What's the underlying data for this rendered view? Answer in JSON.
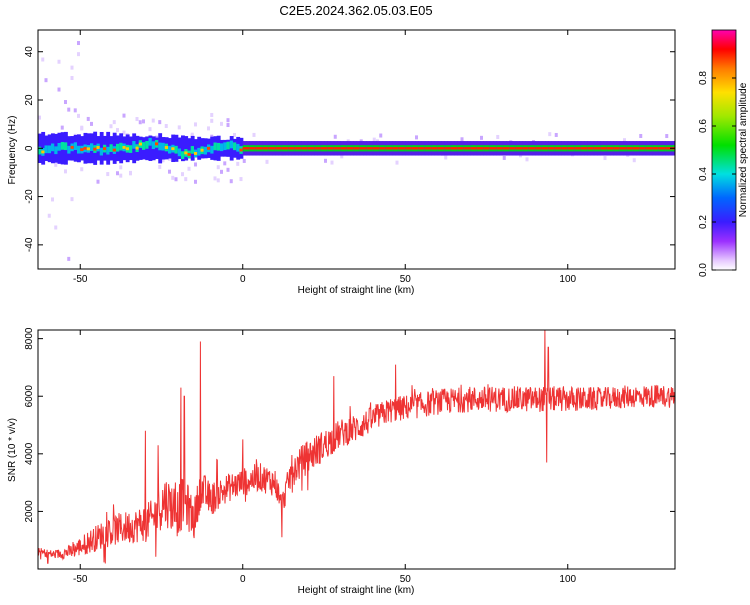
{
  "title": "C2E5.2024.362.05.03.E05",
  "chart_data": [
    {
      "type": "heatmap",
      "xlabel": "Height of straight line (km)",
      "ylabel": "Frequency (Hz)",
      "xlim": [
        -63,
        133
      ],
      "ylim": [
        -50,
        49
      ],
      "xticks": [
        -50,
        0,
        50,
        100
      ],
      "yticks": [
        -40,
        -20,
        0,
        20,
        40
      ],
      "colorbar": {
        "label": "Normalized spectral amplitude",
        "range": [
          0.0,
          1.0
        ],
        "ticks": [
          0.0,
          0.2,
          0.4,
          0.6,
          0.8
        ],
        "tick_labels": [
          "0.0",
          "0.2",
          "0.4",
          "0.6",
          "0.8"
        ]
      },
      "band_center_hz": 0,
      "band_halfwidth_hz": [
        {
          "x": -63,
          "hw": 5
        },
        {
          "x": -40,
          "hw": 5
        },
        {
          "x": -20,
          "hw": 4
        },
        {
          "x": 0,
          "hw": 3
        },
        {
          "x": 133,
          "hw": 3
        }
      ],
      "peak_frequency_hz": [
        {
          "x": -63,
          "f": -1.5
        },
        {
          "x": -55,
          "f": 0.5
        },
        {
          "x": -45,
          "f": -0.5
        },
        {
          "x": -35,
          "f": 0.5
        },
        {
          "x": -28,
          "f": 2
        },
        {
          "x": -20,
          "f": -2
        },
        {
          "x": -12,
          "f": -1
        },
        {
          "x": -5,
          "f": 1
        },
        {
          "x": 0,
          "f": 0
        },
        {
          "x": 133,
          "f": 0
        }
      ]
    },
    {
      "type": "line",
      "xlabel": "Height of straight line (km)",
      "ylabel": "SNR (10 * v/v)",
      "xlim": [
        -63,
        133
      ],
      "ylim": [
        0,
        8300
      ],
      "xticks": [
        -50,
        0,
        50,
        100
      ],
      "yticks": [
        2000,
        4000,
        6000,
        8000
      ],
      "series": [
        {
          "color": "#ee3333",
          "x": [
            -63,
            -58,
            -53,
            -48,
            -43,
            -38,
            -33,
            -28,
            -24,
            -20,
            -18,
            -15,
            -13,
            -10,
            -5,
            0,
            5,
            10,
            12,
            15,
            20,
            25,
            30,
            35,
            40,
            45,
            50,
            55,
            60,
            70,
            80,
            90,
            94,
            100,
            110,
            120,
            133
          ],
          "values": [
            600,
            500,
            600,
            900,
            1200,
            1400,
            1500,
            1700,
            2400,
            2000,
            2400,
            1700,
            2800,
            2400,
            2800,
            3000,
            3200,
            3000,
            2200,
            3400,
            3900,
            4300,
            4700,
            4900,
            5200,
            5500,
            5600,
            5700,
            5800,
            5900,
            5900,
            5900,
            5900,
            5900,
            5900,
            6000,
            6000
          ],
          "noise": [
            150,
            150,
            250,
            400,
            500,
            550,
            600,
            700,
            900,
            900,
            900,
            700,
            700,
            600,
            500,
            500,
            500,
            500,
            400,
            550,
            600,
            550,
            500,
            500,
            450,
            450,
            450,
            450,
            450,
            450,
            450,
            450,
            450,
            450,
            400,
            400,
            400
          ],
          "spikes": [
            {
              "x": -30,
              "v": 4800
            },
            {
              "x": -26,
              "v": 4300
            },
            {
              "x": -19,
              "v": 6300
            },
            {
              "x": -18,
              "v": 6000
            },
            {
              "x": -13,
              "v": 7900
            },
            {
              "x": -8,
              "v": 3800
            },
            {
              "x": 0,
              "v": 4500
            },
            {
              "x": 28,
              "v": 6700
            },
            {
              "x": 47,
              "v": 7100
            },
            {
              "x": 93,
              "v": 8300
            },
            {
              "x": 94,
              "v": 7700
            },
            {
              "x": 93.5,
              "v": 3700
            },
            {
              "x": 12,
              "v": 1100
            },
            {
              "x": -60,
              "v": 200
            }
          ]
        }
      ]
    }
  ]
}
